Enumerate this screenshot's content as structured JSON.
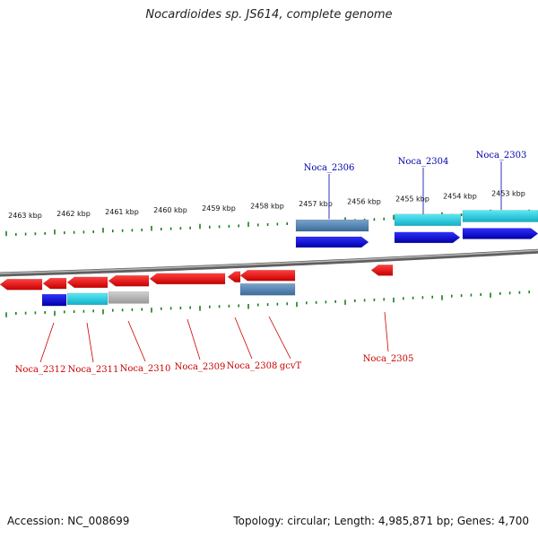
{
  "title": "Nocardioides sp. JS614, complete genome",
  "footer": {
    "accession": "Accession: NC_008699",
    "topology": "Topology: circular; Length: 4,985,871 bp; Genes: 4,700"
  },
  "colors": {
    "reverse_strand": "#ff0000",
    "forward_strand": "#0000ee",
    "reverse_label": "#cc0000",
    "forward_label": "#0000aa",
    "tick": "#1a7f1a",
    "backbone": "#808080",
    "cyan": "#18c8dc",
    "steel": "#5080b0",
    "gray": "#b0b0b0"
  },
  "kbp_labels": [
    "2463 kbp",
    "2462 kbp",
    "2461 kbp",
    "2460 kbp",
    "2459 kbp",
    "2458 kbp",
    "2457 kbp",
    "2456 kbp",
    "2455 kbp",
    "2454 kbp",
    "2453 kbp"
  ],
  "forward_genes": [
    {
      "name": "Noca_2306",
      "label": "Noca_2306"
    },
    {
      "name": "Noca_2304",
      "label": "Noca_2304"
    },
    {
      "name": "Noca_2303",
      "label": "Noca_2303"
    }
  ],
  "reverse_genes": [
    {
      "name": "Noca_2312",
      "label": "Noca_2312"
    },
    {
      "name": "Noca_2311",
      "label": "Noca_2311"
    },
    {
      "name": "Noca_2310",
      "label": "Noca_2310"
    },
    {
      "name": "Noca_2309",
      "label": "Noca_2309"
    },
    {
      "name": "Noca_2308",
      "label": "Noca_2308"
    },
    {
      "name": "gcvT",
      "label": "gcvT"
    },
    {
      "name": "Noca_2305",
      "label": "Noca_2305"
    }
  ]
}
